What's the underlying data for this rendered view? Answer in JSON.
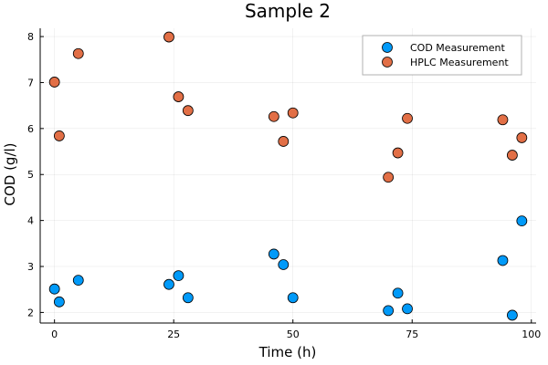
{
  "chart_data": {
    "type": "scatter",
    "title": "Sample 2",
    "xlabel": "Time (h)",
    "ylabel": "COD (g/l)",
    "xlim": [
      -3,
      101
    ],
    "ylim": [
      1.77,
      8.18
    ],
    "xticks": [
      0,
      25,
      50,
      75,
      100
    ],
    "yticks": [
      2,
      3,
      4,
      5,
      6,
      7,
      8
    ],
    "grid": true,
    "legend_position": "top-right",
    "series": [
      {
        "name": "COD Measurement",
        "color": "#009AF9",
        "points": [
          {
            "x": 0,
            "y": 2.51
          },
          {
            "x": 1,
            "y": 2.23
          },
          {
            "x": 5,
            "y": 2.7
          },
          {
            "x": 24,
            "y": 2.61
          },
          {
            "x": 26,
            "y": 2.8
          },
          {
            "x": 28,
            "y": 2.32
          },
          {
            "x": 46,
            "y": 3.27
          },
          {
            "x": 48,
            "y": 3.04
          },
          {
            "x": 50,
            "y": 2.32
          },
          {
            "x": 70,
            "y": 2.04
          },
          {
            "x": 72,
            "y": 2.42
          },
          {
            "x": 74,
            "y": 2.08
          },
          {
            "x": 94,
            "y": 3.13
          },
          {
            "x": 96,
            "y": 1.94
          },
          {
            "x": 98,
            "y": 3.99
          }
        ]
      },
      {
        "name": "HPLC Measurement",
        "color": "#E26F46",
        "points": [
          {
            "x": 0,
            "y": 7.01
          },
          {
            "x": 1,
            "y": 5.84
          },
          {
            "x": 5,
            "y": 7.63
          },
          {
            "x": 24,
            "y": 7.99
          },
          {
            "x": 26,
            "y": 6.69
          },
          {
            "x": 28,
            "y": 6.39
          },
          {
            "x": 46,
            "y": 6.26
          },
          {
            "x": 48,
            "y": 5.72
          },
          {
            "x": 50,
            "y": 6.34
          },
          {
            "x": 70,
            "y": 4.94
          },
          {
            "x": 72,
            "y": 5.47
          },
          {
            "x": 74,
            "y": 6.22
          },
          {
            "x": 94,
            "y": 6.19
          },
          {
            "x": 96,
            "y": 5.42
          },
          {
            "x": 98,
            "y": 5.8
          }
        ]
      }
    ]
  }
}
